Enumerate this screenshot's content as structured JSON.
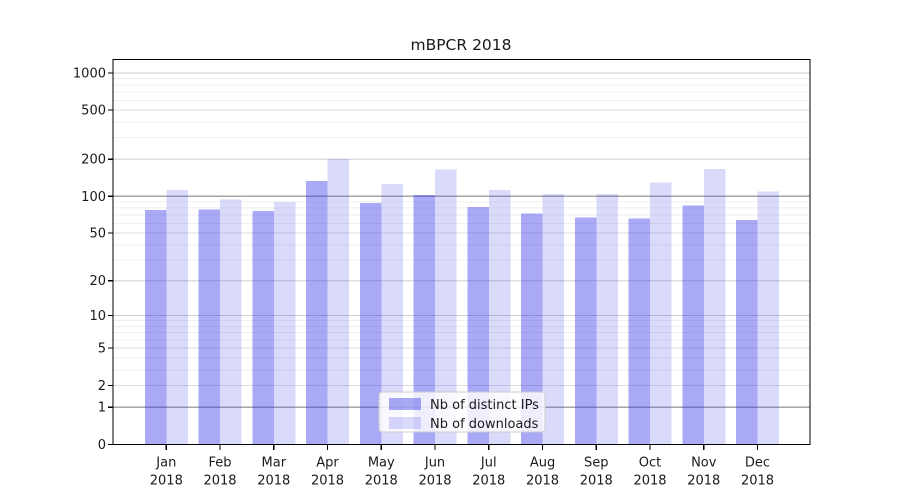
{
  "chart_data": {
    "type": "bar",
    "title": "mBPCR 2018",
    "x_months": [
      "Jan",
      "Feb",
      "Mar",
      "Apr",
      "May",
      "Jun",
      "Jul",
      "Aug",
      "Sep",
      "Oct",
      "Nov",
      "Dec"
    ],
    "x_year": "2018",
    "series": [
      {
        "name": "Nb of distinct IPs",
        "rgba": "rgba(51,51,232,0.42)",
        "values": [
          77,
          78,
          76,
          133,
          88,
          102,
          82,
          72,
          67,
          66,
          84,
          64
        ]
      },
      {
        "name": "Nb of downloads",
        "rgba": "rgba(51,51,232,0.18)",
        "values": [
          112,
          94,
          90,
          200,
          126,
          165,
          112,
          104,
          104,
          129,
          167,
          109
        ]
      }
    ],
    "y_ticks": [
      0,
      1,
      2,
      5,
      10,
      20,
      50,
      100,
      200,
      500,
      1000
    ],
    "y_minor_ticks": [
      3,
      4,
      6,
      7,
      8,
      9,
      30,
      40,
      60,
      70,
      80,
      90,
      300,
      400,
      600,
      700,
      800,
      900
    ],
    "y_scale": "log10(1+v)",
    "ylim": [
      0,
      1283
    ],
    "grid": true,
    "legend_position": "lower center"
  },
  "colors": {
    "background": "#ffffff",
    "axis": "#000000",
    "grid_major": "#dedede",
    "grid_emphasis": "#a6a6a6",
    "grid_mid": "#cfcfcf",
    "grid_minor": "#efefef",
    "legend_bg": "rgba(255,255,255,0.8)",
    "legend_border": "#cccccc",
    "text": "#1a1a1a"
  }
}
